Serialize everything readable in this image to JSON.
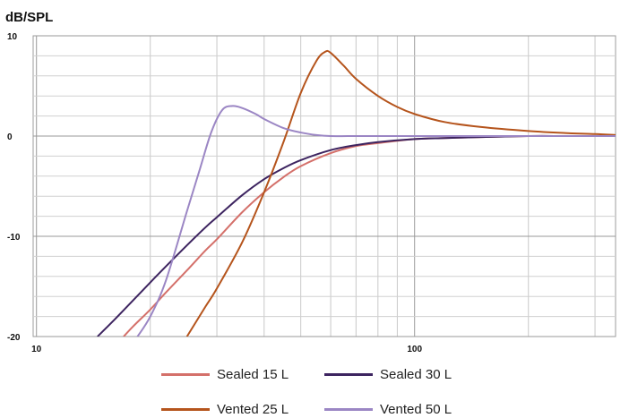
{
  "chart_data": {
    "type": "line",
    "ylabel": "dB/SPL",
    "xscale": "log",
    "xlim": [
      9.8,
      340
    ],
    "ylim": [
      -20,
      10
    ],
    "y_ticks": [
      -20,
      -10,
      0,
      10
    ],
    "y_tick_labels": [
      "-20",
      "-10",
      "0",
      "10"
    ],
    "x_tick_labels": [
      {
        "value": 10,
        "label": "10"
      },
      {
        "value": 100,
        "label": "100"
      }
    ],
    "grid": true,
    "legend": "bottom",
    "series": [
      {
        "name": "Sealed 15 L",
        "color": "#d4706a",
        "x": [
          17,
          18,
          20,
          22,
          25,
          28,
          30,
          35,
          40,
          45,
          50,
          60,
          70,
          80,
          100,
          120,
          150,
          200,
          250,
          300,
          340
        ],
        "y": [
          -20,
          -19.0,
          -17.3,
          -15.6,
          -13.4,
          -11.4,
          -10.3,
          -7.6,
          -5.6,
          -4.1,
          -3.0,
          -1.7,
          -1.0,
          -0.7,
          -0.3,
          -0.2,
          -0.1,
          0,
          0,
          0,
          0
        ]
      },
      {
        "name": "Sealed 30 L",
        "color": "#3d2460",
        "x": [
          14.5,
          16,
          18,
          20,
          22,
          25,
          28,
          30,
          35,
          40,
          45,
          50,
          60,
          70,
          80,
          100,
          120,
          150,
          200,
          250,
          300,
          340
        ],
        "y": [
          -20,
          -18.4,
          -16.4,
          -14.6,
          -13.0,
          -10.9,
          -9.1,
          -8.1,
          -5.9,
          -4.3,
          -3.2,
          -2.4,
          -1.4,
          -0.9,
          -0.6,
          -0.3,
          -0.2,
          -0.1,
          0,
          0,
          0,
          0
        ]
      },
      {
        "name": "Vented 25 L",
        "color": "#b5541c",
        "x": [
          25,
          28,
          30,
          35,
          40,
          45,
          50,
          55,
          58,
          60,
          65,
          70,
          80,
          90,
          100,
          120,
          150,
          200,
          250,
          300,
          340
        ],
        "y": [
          -20,
          -17.0,
          -15.2,
          -10.6,
          -5.6,
          -0.6,
          4.3,
          7.5,
          8.4,
          8.3,
          7.0,
          5.7,
          4.0,
          2.9,
          2.2,
          1.4,
          0.9,
          0.5,
          0.3,
          0.2,
          0.1
        ]
      },
      {
        "name": "Vented 50 L",
        "color": "#9b86c4",
        "x": [
          18.5,
          20,
          22,
          25,
          27,
          29,
          31,
          33,
          35,
          38,
          40,
          45,
          50,
          55,
          60,
          70,
          80,
          100,
          150,
          200,
          340
        ],
        "y": [
          -20,
          -18.0,
          -14.4,
          -7.5,
          -3.4,
          0.4,
          2.6,
          3.0,
          2.8,
          2.2,
          1.7,
          0.8,
          0.35,
          0.1,
          0,
          0,
          0,
          0,
          0,
          0,
          0
        ]
      }
    ]
  }
}
